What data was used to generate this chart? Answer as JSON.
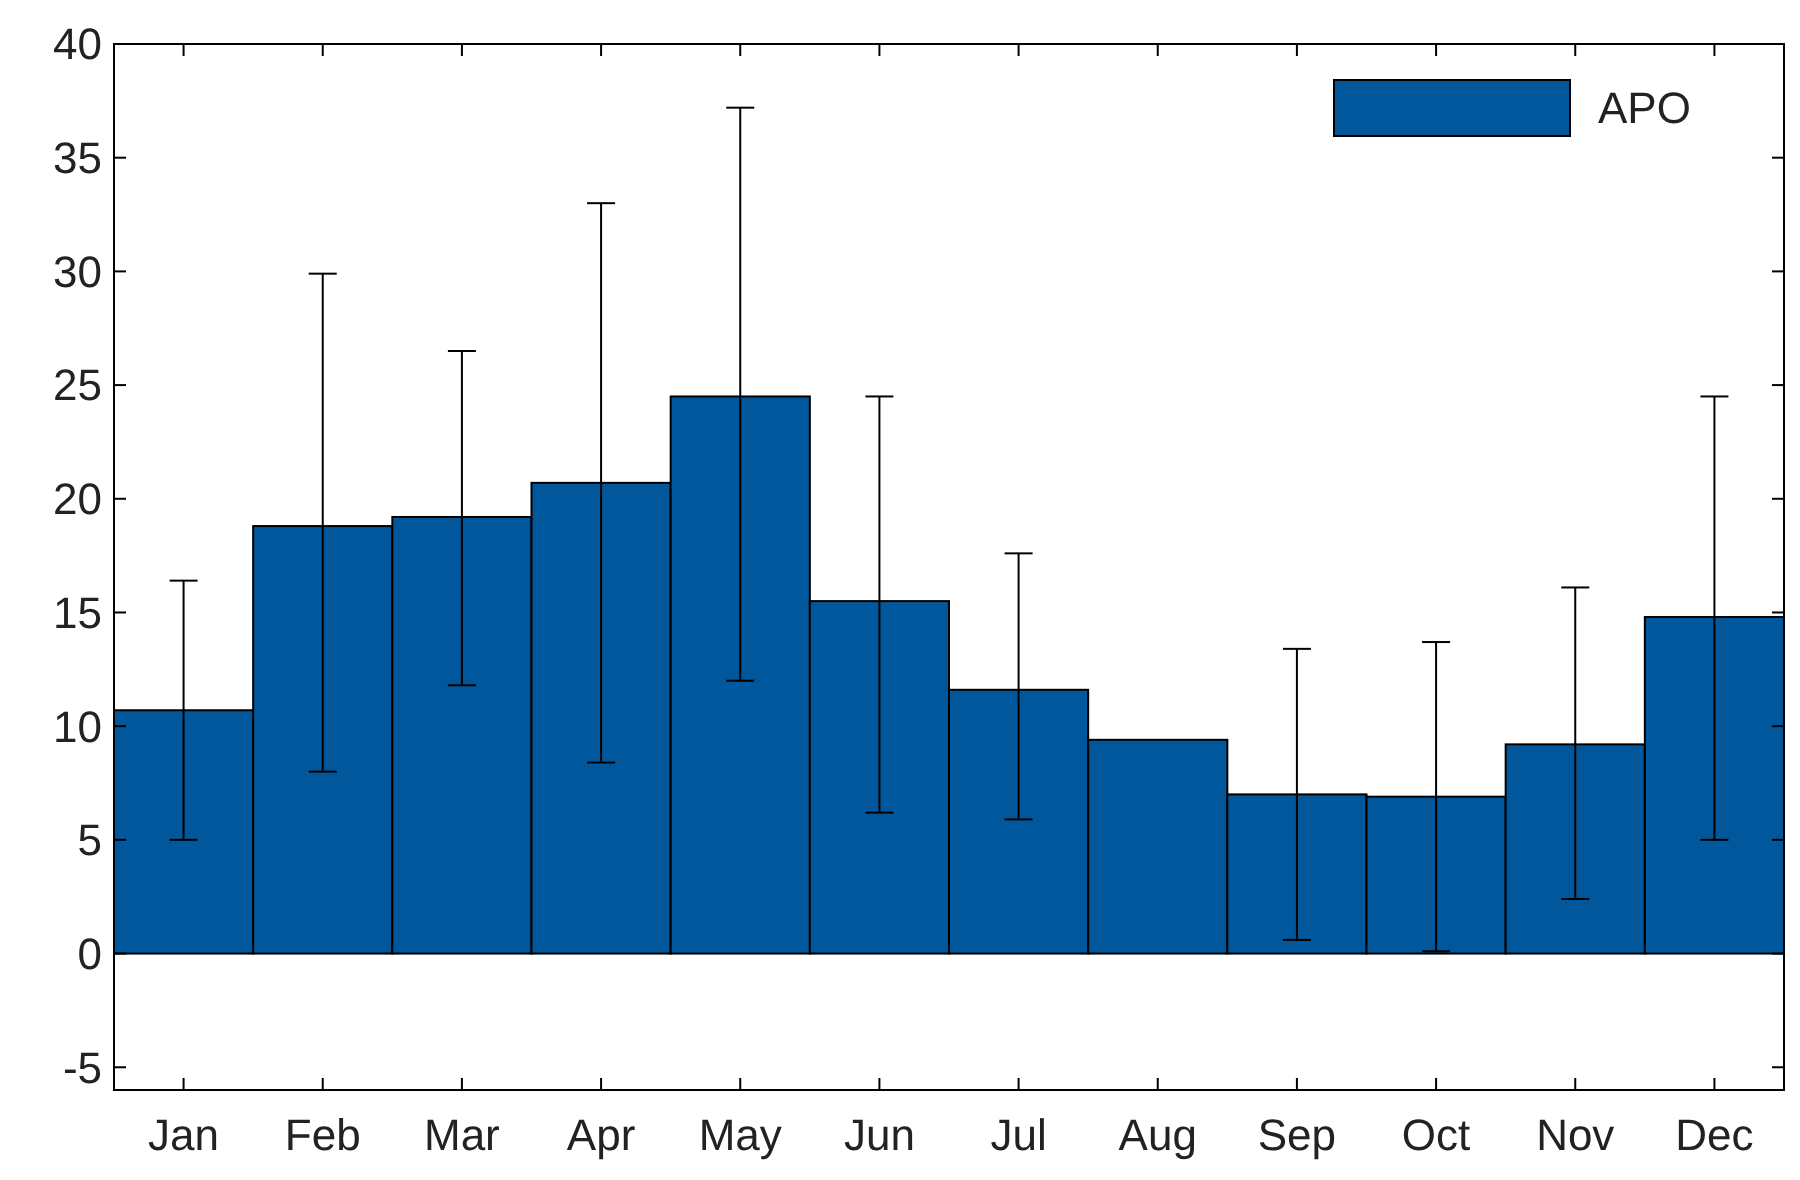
{
  "chart_data": {
    "type": "bar",
    "categories": [
      "Jan",
      "Feb",
      "Mar",
      "Apr",
      "May",
      "Jun",
      "Jul",
      "Aug",
      "Sep",
      "Oct",
      "Nov",
      "Dec"
    ],
    "series": [
      {
        "name": "APO",
        "color": "#00579c",
        "values": [
          10.7,
          18.8,
          19.2,
          20.7,
          24.5,
          15.5,
          11.6,
          9.4,
          7.0,
          6.9,
          9.2,
          14.8
        ],
        "errors": [
          [
            5.0,
            16.4
          ],
          [
            8.0,
            29.9
          ],
          [
            11.8,
            26.5
          ],
          [
            8.4,
            33.0
          ],
          [
            12.0,
            37.2
          ],
          [
            6.2,
            24.5
          ],
          [
            5.9,
            17.6
          ],
          null,
          [
            0.6,
            13.4
          ],
          [
            0.1,
            13.7
          ],
          [
            2.4,
            16.1
          ],
          [
            5.0,
            24.5
          ]
        ]
      }
    ],
    "ylim": [
      -6,
      40
    ],
    "yticks": [
      -5,
      0,
      5,
      10,
      15,
      20,
      25,
      30,
      35,
      40
    ],
    "legend": "top right",
    "grid": false
  }
}
